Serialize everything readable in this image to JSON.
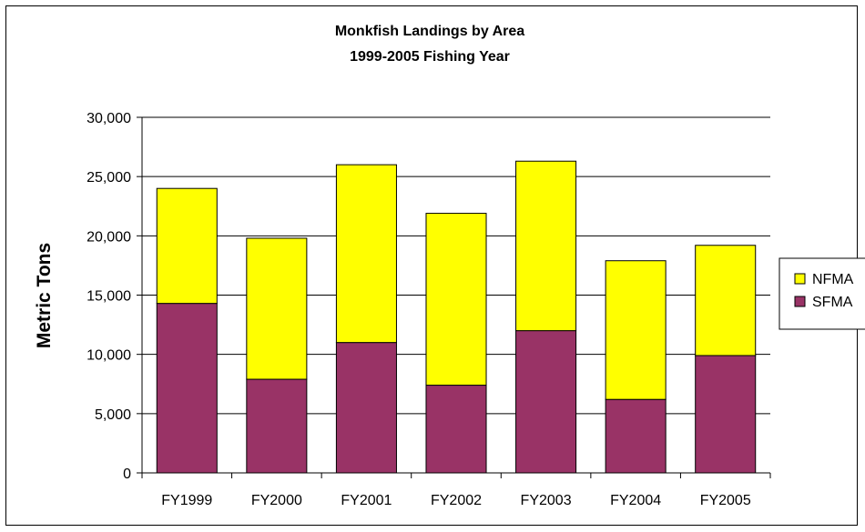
{
  "chart_data": {
    "type": "bar",
    "stacked": true,
    "title": "Monkfish Landings by Area",
    "subtitle": "1999-2005 Fishing Year",
    "xlabel": "",
    "ylabel": "Metric Tons",
    "ylim": [
      0,
      30000
    ],
    "yticks": [
      0,
      5000,
      10000,
      15000,
      20000,
      25000,
      30000
    ],
    "ytick_labels": [
      "0",
      "5,000",
      "10,000",
      "15,000",
      "20,000",
      "25,000",
      "30,000"
    ],
    "grid": true,
    "legend_position": "right",
    "categories": [
      "FY1999",
      "FY2000",
      "FY2001",
      "FY2002",
      "FY2003",
      "FY2004",
      "FY2005"
    ],
    "series": [
      {
        "name": "SFMA",
        "color": "#993366",
        "values": [
          14300,
          7900,
          11000,
          7400,
          12000,
          6200,
          9900
        ]
      },
      {
        "name": "NFMA",
        "color": "#ffff00",
        "values": [
          9700,
          11900,
          15000,
          14500,
          14300,
          11700,
          9300
        ]
      }
    ],
    "legend_order": [
      "NFMA",
      "SFMA"
    ]
  }
}
